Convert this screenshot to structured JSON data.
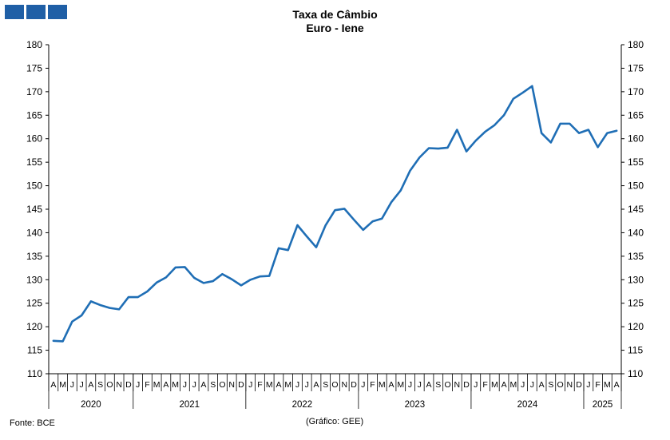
{
  "header": {
    "title_line1": "Taxa de Câmbio",
    "title_line2": "Euro - Iene"
  },
  "footer": {
    "source": "Fonte: BCE",
    "credit": "(Gráfico: GEE)"
  },
  "colors": {
    "series": "#1f6eb5",
    "logo": "#1f5fa6"
  },
  "chart_data": {
    "type": "line",
    "title": "Taxa de Câmbio Euro - Iene",
    "ylim": [
      110,
      180
    ],
    "y_ticks": [
      110,
      115,
      120,
      125,
      130,
      135,
      140,
      145,
      150,
      155,
      160,
      165,
      170,
      175,
      180
    ],
    "dual_y_axis": true,
    "grid": false,
    "x_month_labels": [
      "A",
      "M",
      "J",
      "J",
      "A",
      "S",
      "O",
      "N",
      "D",
      "J",
      "F",
      "M",
      "A",
      "M",
      "J",
      "J",
      "A",
      "S",
      "O",
      "N",
      "D",
      "J",
      "F",
      "M",
      "A",
      "M",
      "J",
      "J",
      "A",
      "S",
      "O",
      "N",
      "D",
      "J",
      "F",
      "M",
      "A",
      "M",
      "J",
      "J",
      "A",
      "S",
      "O",
      "N",
      "D",
      "J",
      "F",
      "M",
      "A",
      "M",
      "J",
      "J",
      "A",
      "S",
      "O",
      "N",
      "D",
      "J",
      "F",
      "M",
      "A"
    ],
    "x_year_groups": [
      {
        "label": "2020",
        "months": 9
      },
      {
        "label": "2021",
        "months": 12
      },
      {
        "label": "2022",
        "months": 12
      },
      {
        "label": "2023",
        "months": 12
      },
      {
        "label": "2024",
        "months": 12
      },
      {
        "label": "2025",
        "months": 4
      }
    ],
    "series": [
      {
        "values": [
          117.0,
          116.9,
          121.1,
          122.4,
          125.4,
          124.6,
          124.0,
          123.7,
          126.3,
          126.3,
          127.5,
          129.4,
          130.5,
          132.6,
          132.7,
          130.4,
          129.3,
          129.7,
          131.2,
          130.1,
          128.8,
          130.0,
          130.7,
          130.8,
          136.7,
          136.3,
          141.6,
          139.2,
          136.9,
          141.6,
          144.8,
          145.1,
          142.8,
          140.6,
          142.4,
          143.0,
          146.5,
          149.0,
          153.2,
          156.0,
          158.0,
          157.9,
          158.1,
          161.9,
          157.3,
          159.6,
          161.5,
          162.9,
          165.0,
          168.5,
          169.8,
          171.2,
          161.2,
          159.2,
          163.2,
          163.2,
          161.2,
          161.9,
          158.2,
          161.2,
          161.7
        ]
      }
    ]
  }
}
